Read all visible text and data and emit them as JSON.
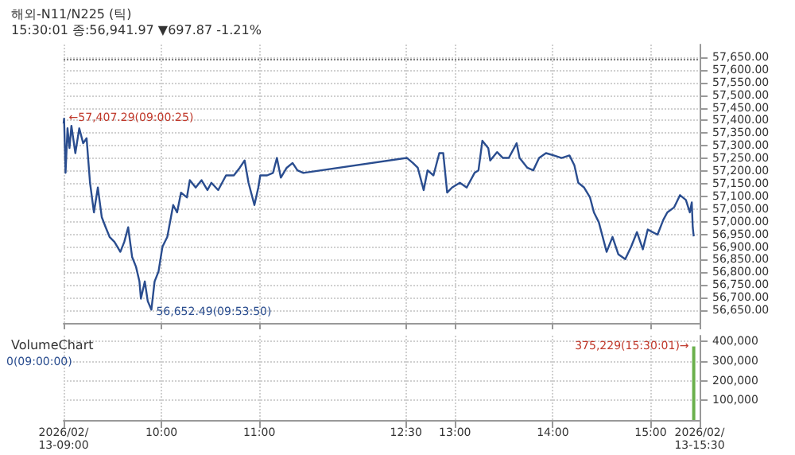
{
  "chart_data": [
    {
      "type": "line",
      "title": "해외-N11/N225 (틱)",
      "subtitle": "15:30:01 종:56,941.97 ▼697.87 -1.21%",
      "xlim": [
        9,
        15.5
      ],
      "xticks": [
        9,
        10,
        11,
        12.5,
        13,
        14,
        15,
        15.5
      ],
      "ylim": [
        56600,
        57700
      ],
      "yticks": [
        {
          "value": 56650,
          "label": "56,650.00"
        },
        {
          "value": 56700,
          "label": "56,700.00"
        },
        {
          "value": 56750,
          "label": "56,750.00"
        },
        {
          "value": 56800,
          "label": "56,800.00"
        },
        {
          "value": 56850,
          "label": "56,850.00"
        },
        {
          "value": 56900,
          "label": "56,900.00"
        },
        {
          "value": 56950,
          "label": "56,950.00"
        },
        {
          "value": 57000,
          "label": "57,000.00"
        },
        {
          "value": 57050,
          "label": "57,050.00"
        },
        {
          "value": 57100,
          "label": "57,100.00"
        },
        {
          "value": 57150,
          "label": "57,150.00"
        },
        {
          "value": 57200,
          "label": "57,200.00"
        },
        {
          "value": 57250,
          "label": "57,250.00"
        },
        {
          "value": 57300,
          "label": "57,300.00"
        },
        {
          "value": 57350,
          "label": "57,350.00"
        },
        {
          "value": 57400,
          "label": "57,400.00"
        },
        {
          "value": 57450,
          "label": "57,450.00"
        },
        {
          "value": 57500,
          "label": "57,500.00"
        },
        {
          "value": 57550,
          "label": "57,550.00"
        },
        {
          "value": 57600,
          "label": "57,600.00"
        },
        {
          "value": 57650,
          "label": "57,650.00"
        }
      ],
      "tick_labels": "y",
      "grid": true,
      "marker": "none",
      "line_style": "solid",
      "series": [
        {
          "color": "#2a4d8f",
          "x": [
            9,
            9.005,
            9.02,
            9.04,
            9.06,
            9.08,
            9.12,
            9.16,
            9.2,
            9.235,
            9.27,
            9.31,
            9.35,
            9.39,
            9.43,
            9.47,
            9.52,
            9.58,
            9.62,
            9.66,
            9.7,
            9.74,
            9.775,
            9.79,
            9.83,
            9.86,
            9.897,
            9.93,
            9.97,
            10.01,
            10.06,
            10.12,
            10.16,
            10.2,
            10.26,
            10.29,
            10.35,
            10.41,
            10.47,
            10.51,
            10.58,
            10.66,
            10.74,
            10.8,
            10.85,
            10.89,
            10.95,
            10.99,
            11.01,
            11.08,
            11.14,
            11.18,
            11.22,
            11.28,
            11.34,
            11.39,
            11.45,
            12.51,
            12.57,
            12.62,
            12.68,
            12.72,
            12.78,
            12.84,
            12.88,
            12.92,
            12.97,
            13.05,
            13.12,
            13.2,
            13.24,
            13.28,
            13.34,
            13.36,
            13.43,
            13.49,
            13.55,
            13.63,
            13.66,
            13.74,
            13.8,
            13.86,
            13.93,
            14.01,
            14.09,
            14.17,
            14.22,
            14.26,
            14.32,
            14.38,
            14.42,
            14.47,
            14.55,
            14.61,
            14.67,
            14.74,
            14.8,
            14.86,
            14.92,
            14.97,
            15.07,
            15.13,
            15.17,
            15.24,
            15.3,
            15.36,
            15.4,
            15.42,
            15.43,
            15.44
          ],
          "values": [
            57388,
            57407.29,
            57193,
            57369,
            57291,
            57379,
            57271,
            57369,
            57310,
            57330,
            57154,
            57037,
            57135,
            57018,
            56978,
            56940,
            56920,
            56881,
            56920,
            56978,
            56861,
            56822,
            56764,
            56696,
            56764,
            56686,
            56652.49,
            56764,
            56803,
            56901,
            56940,
            57066,
            57037,
            57115,
            57096,
            57164,
            57135,
            57164,
            57125,
            57154,
            57125,
            57183,
            57183,
            57213,
            57242,
            57154,
            57066,
            57135,
            57183,
            57183,
            57193,
            57252,
            57174,
            57213,
            57232,
            57203,
            57193,
            57252,
            57232,
            57213,
            57125,
            57203,
            57183,
            57271,
            57271,
            57115,
            57135,
            57154,
            57135,
            57193,
            57203,
            57320,
            57291,
            57242,
            57275,
            57252,
            57252,
            57310,
            57252,
            57213,
            57203,
            57252,
            57271,
            57262,
            57252,
            57262,
            57223,
            57154,
            57135,
            57096,
            57037,
            56998,
            56881,
            56940,
            56871,
            56852,
            56901,
            56959,
            56891,
            56969,
            56949,
            57008,
            57037,
            57057,
            57105,
            57086,
            57037,
            57076,
            56978,
            56941.97
          ]
        }
      ],
      "ref_lines": [
        {
          "axis": "y",
          "value": 57639.84,
          "color": "#808080",
          "line_style": "dotted"
        }
      ],
      "annotations": [
        {
          "text": "←57,407.29(09:00:25)",
          "x": 9.005,
          "y": 57407.29
        },
        {
          "text": "56,652.49(09:53:50)",
          "x": 9.897,
          "y": 56652.49
        }
      ]
    },
    {
      "type": "bar",
      "title": "VolumeChart",
      "xlim": [
        9,
        15.5
      ],
      "xticks": [
        {
          "value": 9,
          "label": "2026/02/13-09:00"
        },
        {
          "value": 10,
          "label": "10:00"
        },
        {
          "value": 11,
          "label": "11:00"
        },
        {
          "value": 12.5,
          "label": "12:30"
        },
        {
          "value": 13,
          "label": "13:00"
        },
        {
          "value": 14,
          "label": "14:00"
        },
        {
          "value": 15,
          "label": "15:00"
        },
        {
          "value": 15.5,
          "label": "2026/02/13-15:30"
        }
      ],
      "ylim": [
        0,
        430000
      ],
      "yticks": [
        {
          "value": 100000,
          "label": "100,000"
        },
        {
          "value": 200000,
          "label": "200,000"
        },
        {
          "value": 300000,
          "label": "300,000"
        },
        {
          "value": 400000,
          "label": "400,000"
        }
      ],
      "grid": true,
      "series": [
        {
          "color": "#6ab04c",
          "x": [
            15.44
          ],
          "values": [
            375229
          ]
        }
      ],
      "annotations": [
        "0(09:00:00)",
        {
          "text": "375,229(15:30:01)→",
          "x": 15.44,
          "y": 375229
        }
      ]
    }
  ]
}
